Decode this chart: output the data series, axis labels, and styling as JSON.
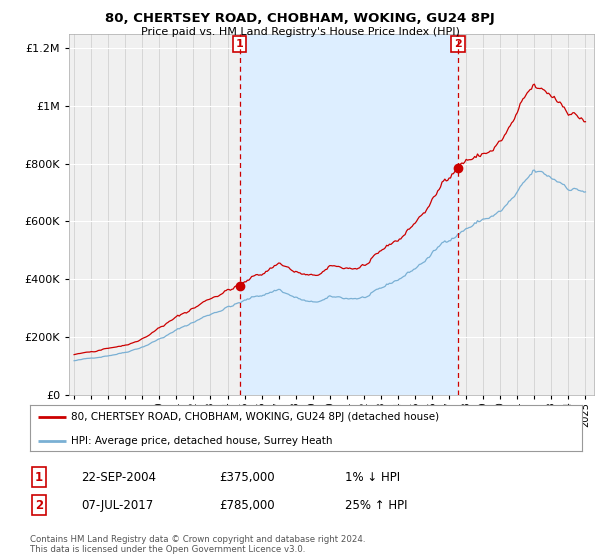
{
  "title": "80, CHERTSEY ROAD, CHOBHAM, WOKING, GU24 8PJ",
  "subtitle": "Price paid vs. HM Land Registry's House Price Index (HPI)",
  "legend_line1": "80, CHERTSEY ROAD, CHOBHAM, WOKING, GU24 8PJ (detached house)",
  "legend_line2": "HPI: Average price, detached house, Surrey Heath",
  "sale1_label": "1",
  "sale1_date": "22-SEP-2004",
  "sale1_price": "£375,000",
  "sale1_hpi": "1% ↓ HPI",
  "sale2_label": "2",
  "sale2_date": "07-JUL-2017",
  "sale2_price": "£785,000",
  "sale2_hpi": "25% ↑ HPI",
  "footnote": "Contains HM Land Registry data © Crown copyright and database right 2024.\nThis data is licensed under the Open Government Licence v3.0.",
  "hpi_color": "#7ab0d4",
  "price_color": "#cc0000",
  "sale1_x": 2004.72,
  "sale1_y": 375000,
  "sale2_x": 2017.52,
  "sale2_y": 785000,
  "vline1_x": 2004.72,
  "vline2_x": 2017.52,
  "shade_color": "#ddeeff",
  "ylim": [
    0,
    1250000
  ],
  "xlim": [
    1994.7,
    2025.5
  ],
  "background_color": "#ffffff",
  "plot_bg_color": "#f0f0f0",
  "yticks": [
    0,
    200000,
    400000,
    600000,
    800000,
    1000000,
    1200000
  ],
  "xticks": [
    1995,
    1996,
    1997,
    1998,
    1999,
    2000,
    2001,
    2002,
    2003,
    2004,
    2005,
    2006,
    2007,
    2008,
    2009,
    2010,
    2011,
    2012,
    2013,
    2014,
    2015,
    2016,
    2017,
    2018,
    2019,
    2020,
    2021,
    2022,
    2023,
    2024,
    2025
  ]
}
